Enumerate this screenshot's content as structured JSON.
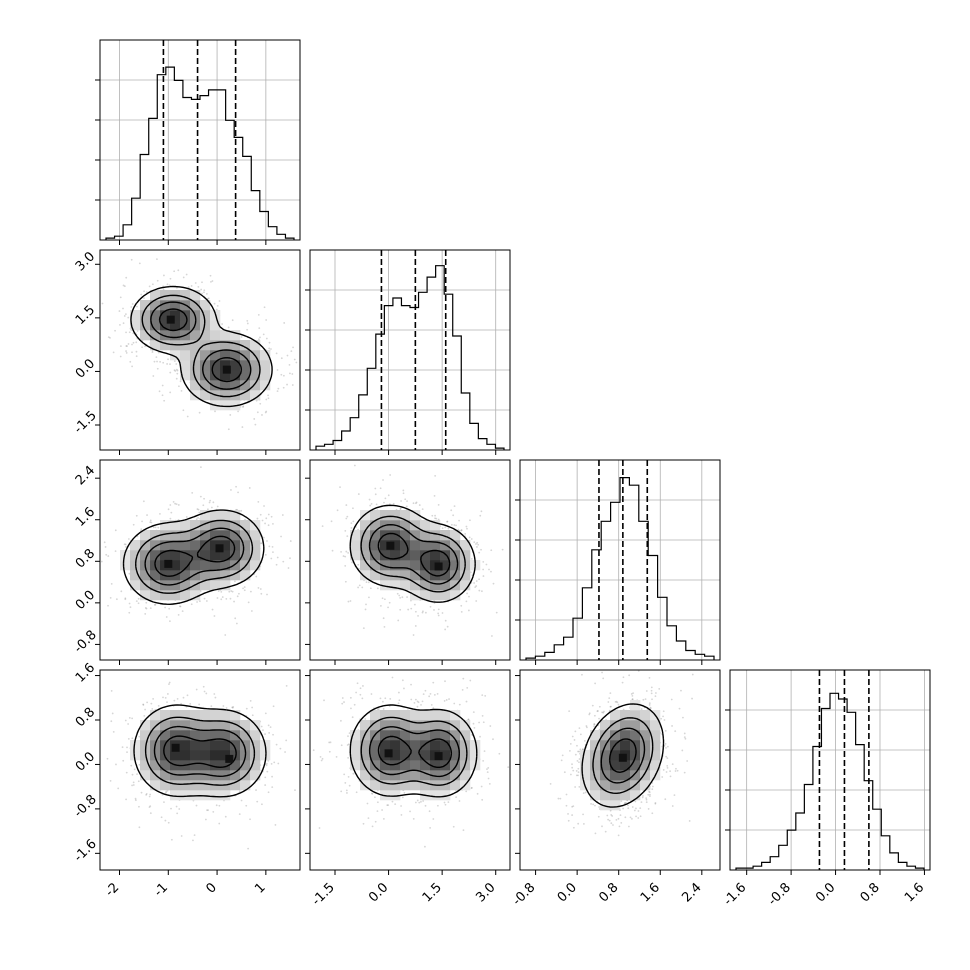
{
  "chart_data": {
    "type": "corner",
    "grid": true,
    "parameters": [
      {
        "hist_ticks": [
          "-2",
          "-1",
          "0",
          "1"
        ],
        "hist_range": [
          -2.4,
          1.7
        ],
        "quantiles": [
          -1.1,
          -0.4,
          0.38
        ],
        "hist_heights": [
          0.01,
          0.02,
          0.08,
          0.22,
          0.45,
          0.64,
          0.87,
          0.91,
          0.84,
          0.75,
          0.74,
          0.76,
          0.79,
          0.79,
          0.63,
          0.54,
          0.44,
          0.26,
          0.15,
          0.07,
          0.03,
          0.01
        ]
      },
      {
        "hist_ticks": [
          "-1.5",
          "0.0",
          "1.5",
          "3.0"
        ],
        "hist_range": [
          -2.2,
          3.4
        ],
        "quantiles": [
          -0.2,
          0.75,
          1.6
        ],
        "hist_heights": [
          0.02,
          0.03,
          0.05,
          0.1,
          0.17,
          0.29,
          0.43,
          0.61,
          0.76,
          0.8,
          0.76,
          0.75,
          0.83,
          0.91,
          0.97,
          0.82,
          0.6,
          0.3,
          0.14,
          0.06,
          0.03,
          0.01
        ]
      },
      {
        "hist_ticks": [
          "-0.8",
          "0.0",
          "0.8",
          "1.6",
          "2.4"
        ],
        "hist_range": [
          -1.1,
          2.75
        ],
        "quantiles": [
          0.42,
          0.88,
          1.35
        ],
        "hist_heights": [
          0.01,
          0.02,
          0.04,
          0.08,
          0.12,
          0.22,
          0.38,
          0.58,
          0.73,
          0.83,
          0.96,
          0.92,
          0.73,
          0.55,
          0.33,
          0.18,
          0.1,
          0.05,
          0.03,
          0.02
        ]
      },
      {
        "hist_ticks": [
          "-1.6",
          "-0.8",
          "0.0",
          "0.8",
          "1.6"
        ],
        "hist_range": [
          -1.9,
          1.7
        ],
        "quantiles": [
          -0.29,
          0.16,
          0.6
        ],
        "hist_heights": [
          0.01,
          0.01,
          0.02,
          0.04,
          0.07,
          0.13,
          0.21,
          0.3,
          0.45,
          0.65,
          0.85,
          0.93,
          0.9,
          0.83,
          0.66,
          0.47,
          0.32,
          0.18,
          0.09,
          0.04,
          0.02,
          0.01
        ]
      }
    ],
    "panels_2d": [
      {
        "row": 1,
        "col": 0,
        "y_ticks": [
          "-1.5",
          "0.0",
          "1.5",
          "3.0"
        ],
        "blobs": [
          {
            "x": -0.9,
            "y": 1.45,
            "sx": 0.42,
            "sy": 0.45,
            "r": 0.0
          },
          {
            "x": 0.2,
            "y": 0.05,
            "sx": 0.45,
            "sy": 0.5,
            "r": 0.0
          }
        ],
        "peaks": [
          [
            -0.95,
            1.45
          ],
          [
            0.2,
            0.05
          ]
        ]
      },
      {
        "row": 2,
        "col": 0,
        "y_ticks": [
          "-0.8",
          "0.0",
          "0.8",
          "1.6",
          "2.4"
        ],
        "blobs": [
          {
            "x": -1.0,
            "y": 0.75,
            "sx": 0.45,
            "sy": 0.38,
            "r": 0.0
          },
          {
            "x": 0.1,
            "y": 1.05,
            "sx": 0.42,
            "sy": 0.36,
            "r": 0.0
          }
        ],
        "peaks": [
          [
            -1.0,
            0.75
          ],
          [
            0.05,
            1.05
          ]
        ]
      },
      {
        "row": 2,
        "col": 1,
        "blobs": [
          {
            "x": 0.05,
            "y": 1.1,
            "sx": 0.55,
            "sy": 0.38,
            "r": 0.0
          },
          {
            "x": 1.4,
            "y": 0.75,
            "sx": 0.5,
            "sy": 0.36,
            "r": 0.0
          }
        ],
        "peaks": [
          [
            0.05,
            1.1
          ],
          [
            1.4,
            0.7
          ]
        ]
      },
      {
        "row": 3,
        "col": 0,
        "y_ticks": [
          "-1.6",
          "-0.8",
          "0.0",
          "0.8",
          "1.6"
        ],
        "blobs": [
          {
            "x": -0.85,
            "y": 0.25,
            "sx": 0.42,
            "sy": 0.4,
            "r": 0.0
          },
          {
            "x": 0.15,
            "y": 0.2,
            "sx": 0.42,
            "sy": 0.38,
            "r": 0.0
          }
        ],
        "peaks": [
          [
            -0.85,
            0.3
          ],
          [
            0.25,
            0.1
          ]
        ]
      },
      {
        "row": 3,
        "col": 1,
        "blobs": [
          {
            "x": 0.05,
            "y": 0.25,
            "sx": 0.55,
            "sy": 0.4,
            "r": 0.0
          },
          {
            "x": 1.45,
            "y": 0.2,
            "sx": 0.5,
            "sy": 0.38,
            "r": 0.0
          }
        ],
        "peaks": [
          [
            0.0,
            0.2
          ],
          [
            1.4,
            0.15
          ]
        ]
      },
      {
        "row": 3,
        "col": 2,
        "blobs": [
          {
            "x": 0.88,
            "y": 0.16,
            "sx": 0.38,
            "sy": 0.45,
            "r": 0.25
          }
        ],
        "peaks": [
          [
            0.88,
            0.12
          ]
        ]
      }
    ]
  }
}
